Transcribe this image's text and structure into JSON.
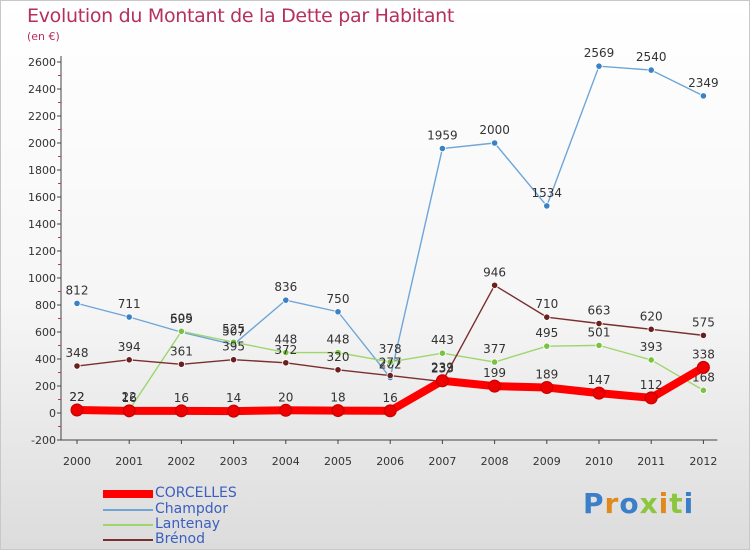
{
  "header": {
    "title": "Evolution du Montant de la Dette par Habitant",
    "subtitle": "(en €)"
  },
  "colors": {
    "title": "#b5305a",
    "legend_text": "#3b5fc0",
    "axis_text": "#333333"
  },
  "logo": {
    "text": "Proxiti"
  },
  "chart_data": {
    "type": "line",
    "title": "Evolution du Montant de la Dette par Habitant",
    "subtitle": "(en €)",
    "xlabel": "",
    "ylabel": "",
    "x": [
      "2000",
      "2001",
      "2002",
      "2003",
      "2004",
      "2005",
      "2006",
      "2007",
      "2008",
      "2009",
      "2010",
      "2011",
      "2012"
    ],
    "ylim": [
      -200,
      2600
    ],
    "yticks": [
      -200,
      0,
      200,
      400,
      600,
      800,
      1000,
      1200,
      1400,
      1600,
      1800,
      2000,
      2200,
      2400,
      2600
    ],
    "grid": false,
    "legend_position": "bottom-left",
    "series": [
      {
        "name": "CORCELLES",
        "color": "#ff0000",
        "point_color": "#ee0000",
        "values": [
          22,
          16,
          16,
          14,
          20,
          18,
          16,
          239,
          199,
          189,
          147,
          112,
          338
        ],
        "labels": [
          "22",
          "16",
          "16",
          "14",
          "20",
          "18",
          "16",
          "239",
          "199",
          "189",
          "147",
          "112",
          "338"
        ]
      },
      {
        "name": "Champdor",
        "color": "#6ea6d8",
        "point_color": "#3a82c4",
        "values": [
          812,
          711,
          599,
          507,
          836,
          750,
          262,
          1959,
          2000,
          1534,
          2569,
          2540,
          2349
        ],
        "labels": [
          "812",
          "711",
          "599",
          "507",
          "836",
          "750",
          "262",
          "1959",
          "2000",
          "1534",
          "2569",
          "2540",
          "2349"
        ]
      },
      {
        "name": "Lantenay",
        "color": "#9ed66e",
        "point_color": "#7cc242",
        "values": [
          22,
          22,
          605,
          525,
          448,
          448,
          378,
          443,
          377,
          495,
          501,
          393,
          168
        ],
        "labels": [
          "22",
          "22",
          "605",
          "525",
          "448",
          "448",
          "378",
          "443",
          "377",
          "495",
          "501",
          "393",
          "168"
        ]
      },
      {
        "name": "Brénod",
        "color": "#7a2e2e",
        "point_color": "#6b2020",
        "values": [
          348,
          394,
          361,
          395,
          372,
          320,
          277,
          233,
          946,
          710,
          663,
          620,
          575
        ],
        "labels": [
          "348",
          "394",
          "361",
          "395",
          "372",
          "320",
          "277",
          "233",
          "946",
          "710",
          "663",
          "620",
          "575"
        ]
      }
    ]
  }
}
